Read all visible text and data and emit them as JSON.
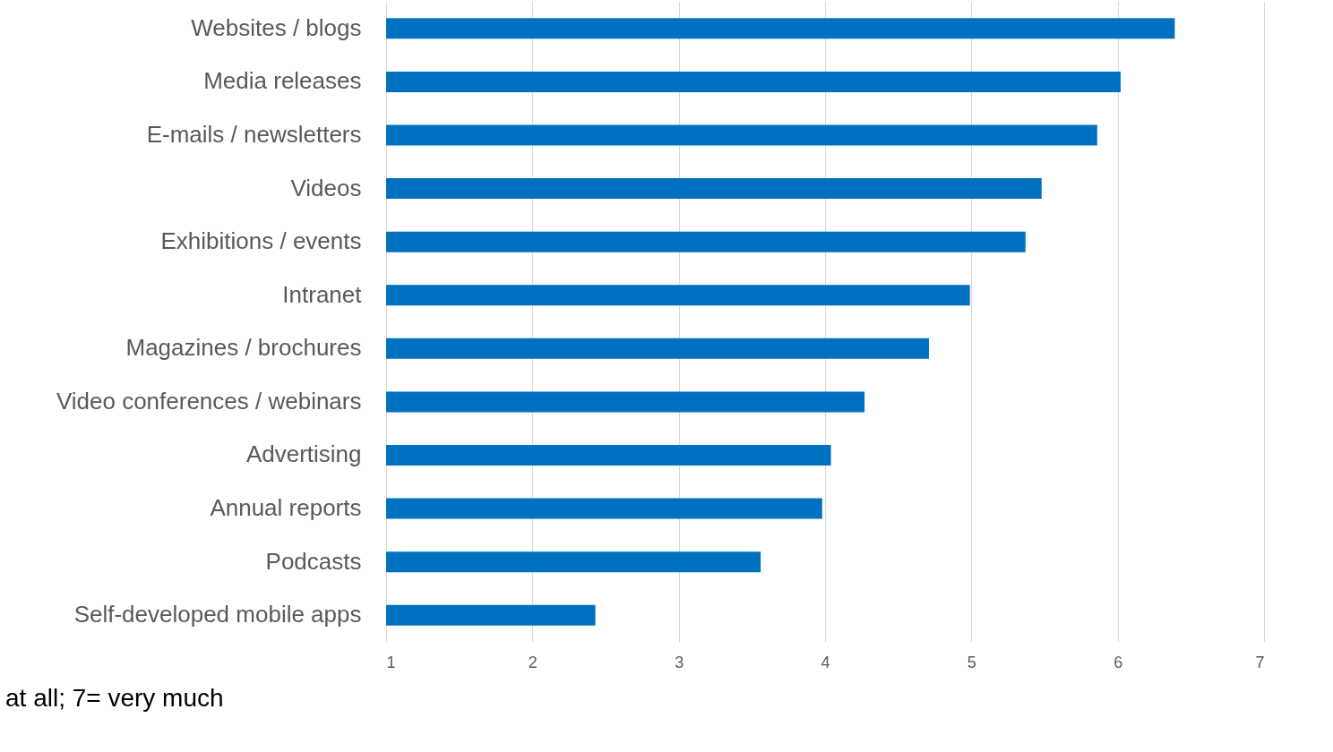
{
  "chart_data": {
    "type": "bar",
    "orientation": "horizontal",
    "categories": [
      "Websites / blogs",
      "Media releases",
      "E-mails / newsletters",
      "Videos",
      "Exhibitions / events",
      "Intranet",
      "Magazines / brochures",
      "Video conferences / webinars",
      "Advertising",
      "Annual reports",
      "Podcasts",
      "Self-developed mobile apps"
    ],
    "values": [
      6.39,
      6.02,
      5.86,
      5.48,
      5.37,
      4.99,
      4.71,
      4.27,
      4.04,
      3.98,
      3.56,
      2.43
    ],
    "color": "#0070c0",
    "xlim": [
      1,
      7
    ],
    "xticks": [
      1,
      2,
      3,
      4,
      5,
      6,
      7
    ],
    "grid": "x",
    "annotations": [
      "at all;  7= very much"
    ]
  }
}
